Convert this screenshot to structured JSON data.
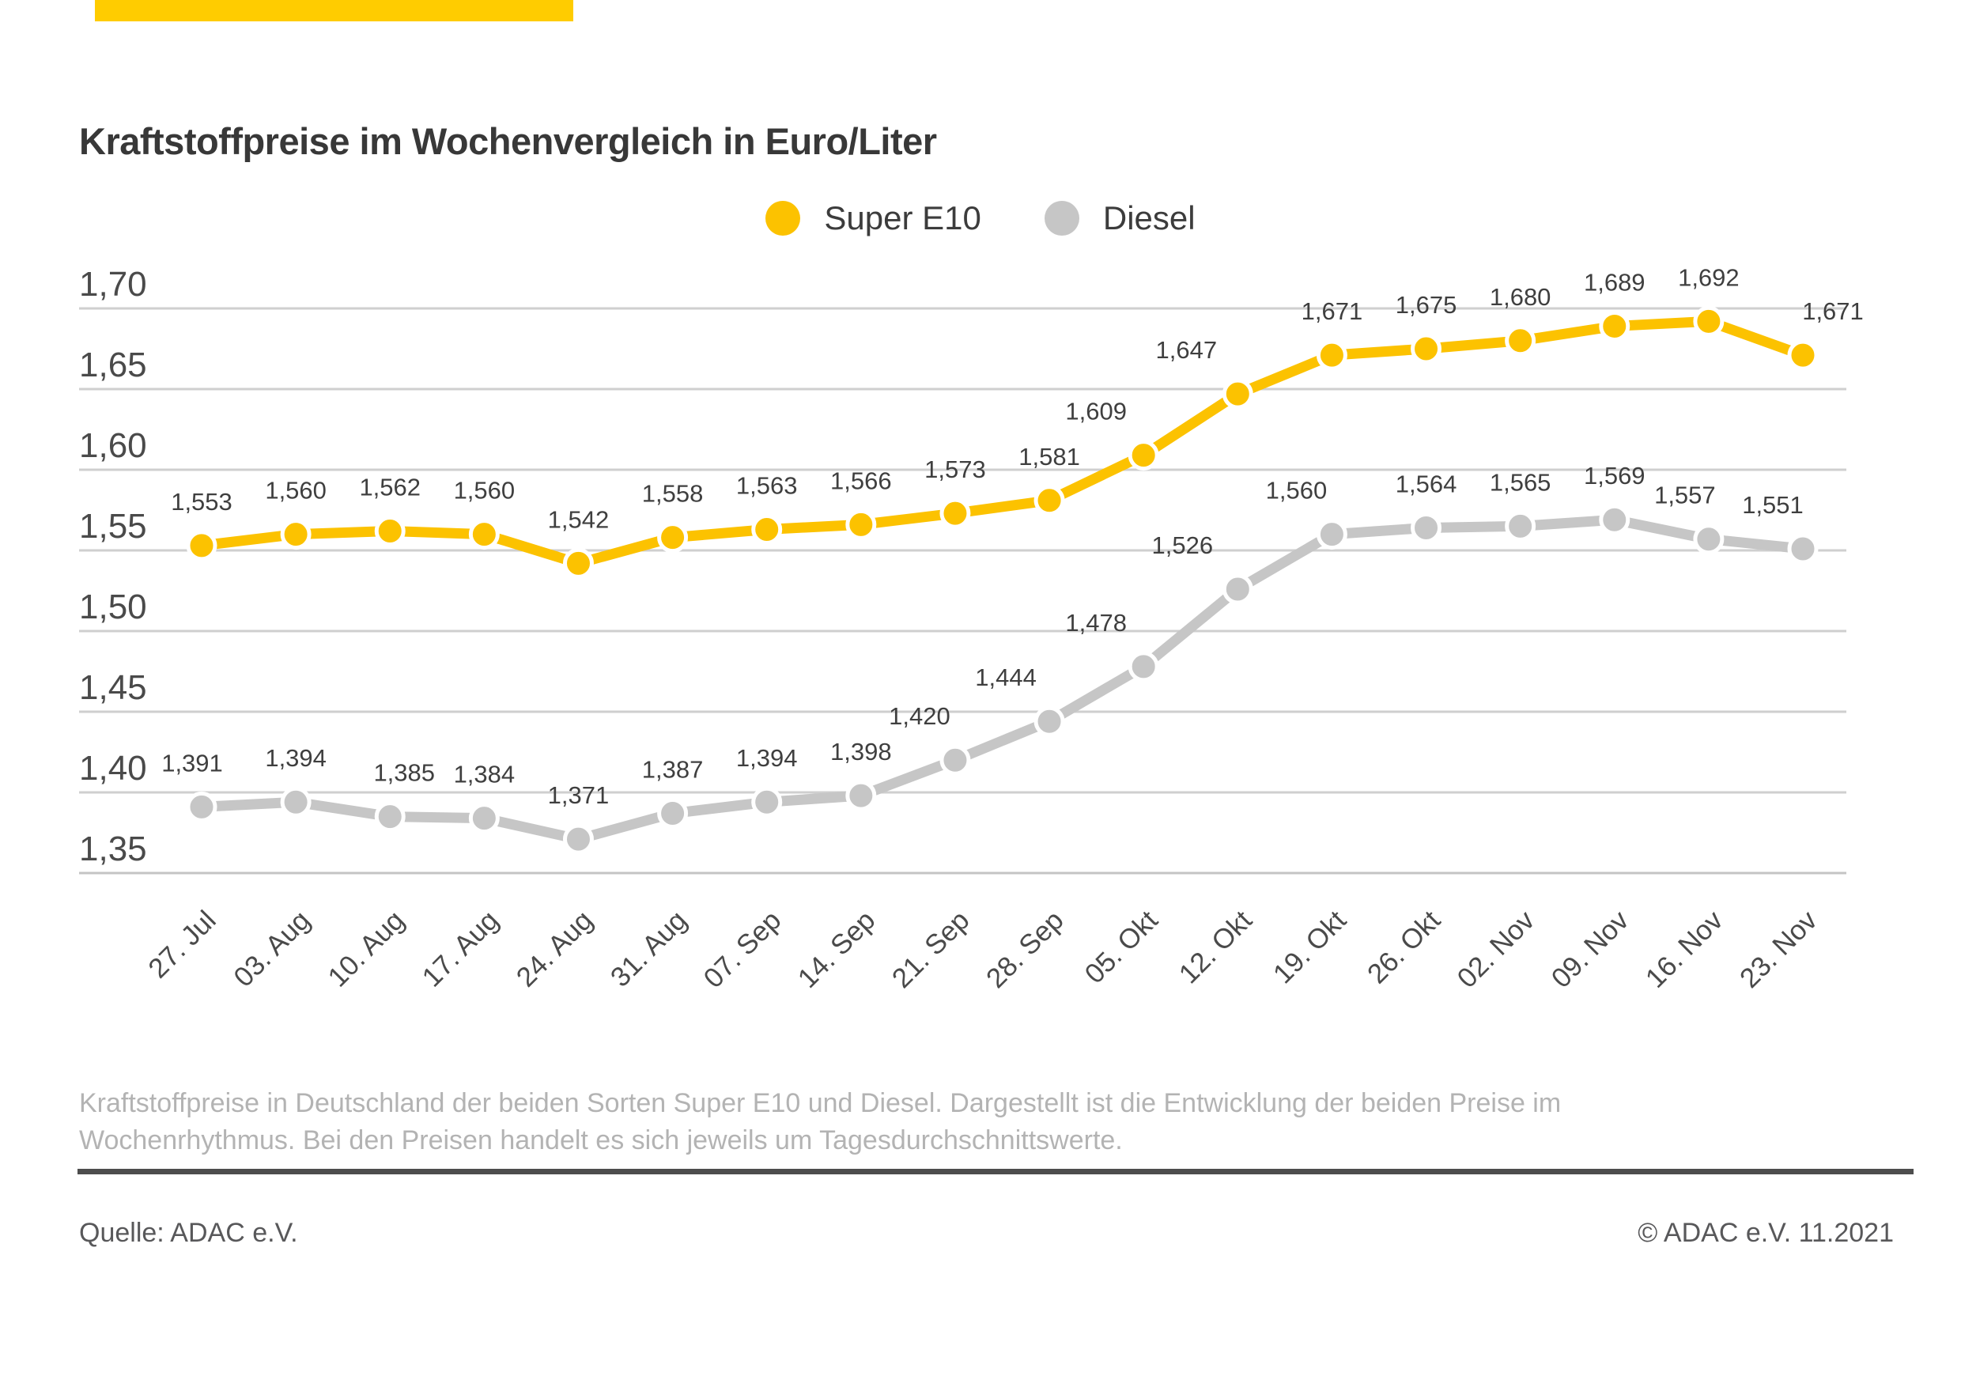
{
  "page": {
    "title": "Kraftstoffpreise im Wochenvergleich in Euro/Liter",
    "description": "Kraftstoffpreise in Deutschland der beiden Sorten Super E10 und Diesel. Dargestellt ist die Entwicklung der beiden Preise im Wochenrhythmus. Bei den Preisen handelt es sich jeweils um Tagesdurchschnittswerte.",
    "source": "Quelle: ADAC e.V.",
    "copyright": "© ADAC e.V. 11.2021",
    "accent_color": "#FFCC00"
  },
  "legend": {
    "items": [
      {
        "label": "Super E10",
        "color": "#FCC200"
      },
      {
        "label": "Diesel",
        "color": "#C6C6C6"
      }
    ]
  },
  "chart_data": {
    "type": "line",
    "title": "Kraftstoffpreise im Wochenvergleich in Euro/Liter",
    "unit": "Euro/Liter",
    "categories": [
      "27. Jul",
      "03. Aug",
      "10. Aug",
      "17. Aug",
      "24. Aug",
      "31. Aug",
      "07. Sep",
      "14. Sep",
      "21. Sep",
      "28. Sep",
      "05. Okt",
      "12. Okt",
      "19. Okt",
      "26. Okt",
      "02. Nov",
      "09. Nov",
      "16. Nov",
      "23. Nov"
    ],
    "series": [
      {
        "name": "Super E10",
        "color": "#FCC200",
        "values": [
          1.553,
          1.56,
          1.562,
          1.56,
          1.542,
          1.558,
          1.563,
          1.566,
          1.573,
          1.581,
          1.609,
          1.647,
          1.671,
          1.675,
          1.68,
          1.689,
          1.692,
          1.671
        ]
      },
      {
        "name": "Diesel",
        "color": "#C6C6C6",
        "values": [
          1.391,
          1.394,
          1.385,
          1.384,
          1.371,
          1.387,
          1.394,
          1.398,
          1.42,
          1.444,
          1.478,
          1.526,
          1.56,
          1.564,
          1.565,
          1.569,
          1.557,
          1.551
        ]
      }
    ],
    "ylim": [
      1.35,
      1.7
    ],
    "ytick_step": 0.05,
    "ytick_labels": [
      "1,70",
      "1,65",
      "1,60",
      "1,55",
      "1,50",
      "1,45",
      "1,40",
      "1,35"
    ],
    "grid": true,
    "legend_position": "top-center",
    "decimal_separator": ","
  }
}
